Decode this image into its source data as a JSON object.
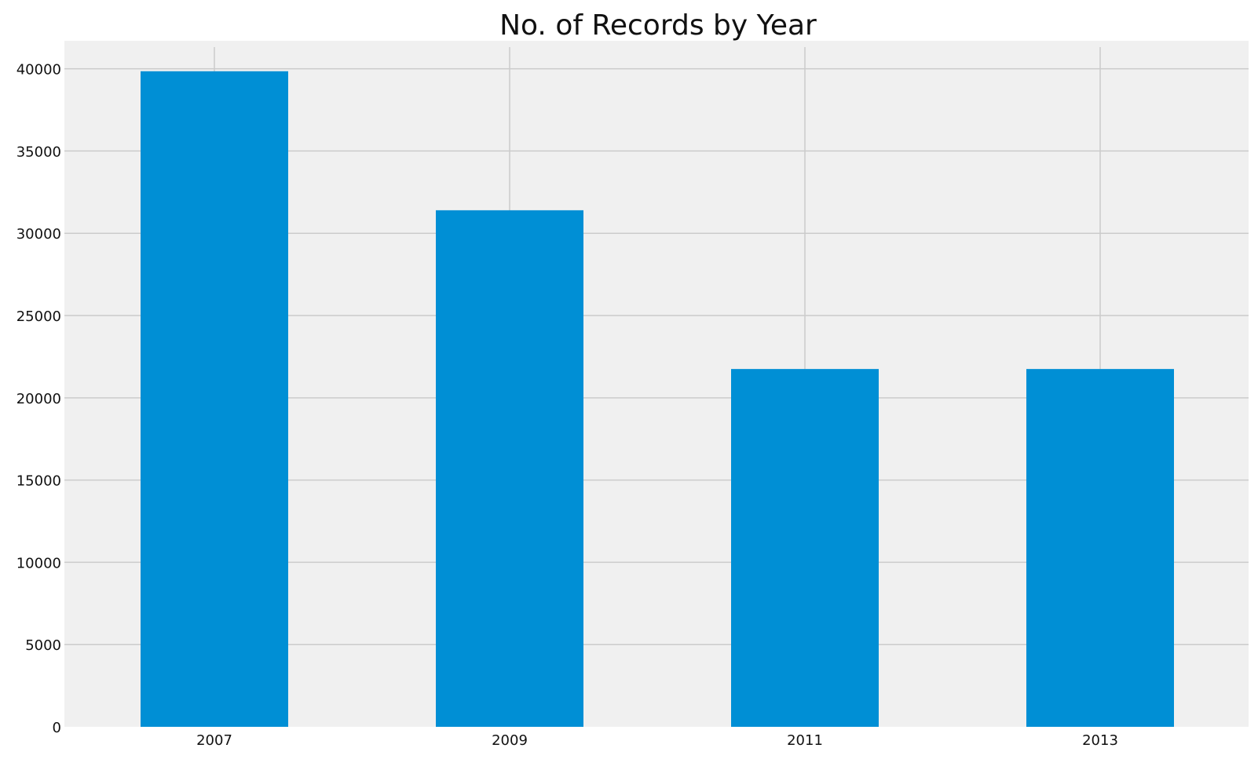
{
  "chart_data": {
    "type": "bar",
    "title": "No. of Records by Year",
    "xlabel": "",
    "ylabel": "",
    "categories": [
      "2007",
      "2009",
      "2011",
      "2013"
    ],
    "values": [
      39850,
      31400,
      21750,
      21750
    ],
    "ylim": [
      0,
      41700
    ],
    "yticks": [
      0,
      5000,
      10000,
      15000,
      20000,
      25000,
      30000,
      35000,
      40000
    ],
    "grid": true,
    "colors": {
      "bar": "#008fd5",
      "plot_background": "#f0f0f0",
      "grid": "#cbcbcb"
    }
  }
}
